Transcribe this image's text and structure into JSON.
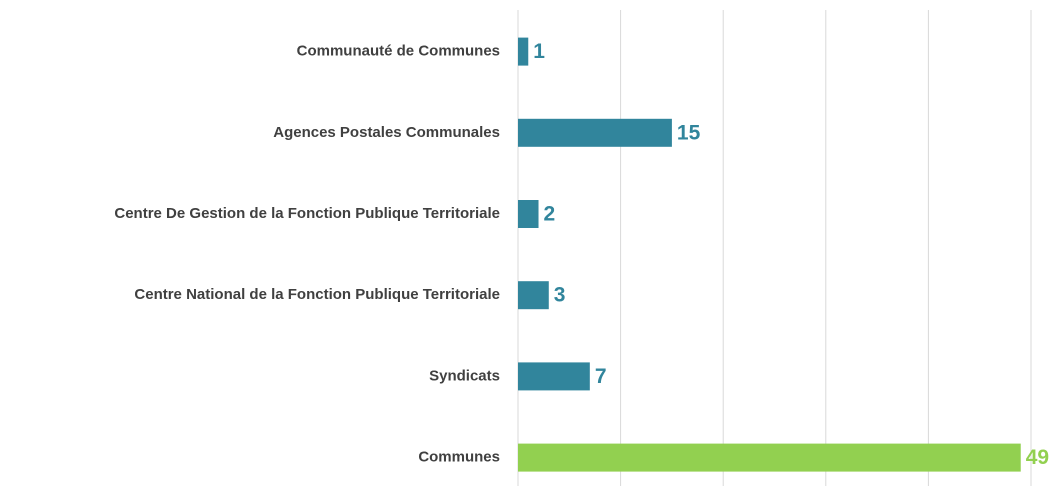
{
  "chart_data": {
    "type": "hbar",
    "categories": [
      "Communauté de Communes",
      "Agences Postales Communales",
      "Centre De Gestion de la Fonction Publique Territoriale",
      "Centre National de la Fonction Publique Territoriale",
      "Syndicats",
      "Communes"
    ],
    "values": [
      1,
      15,
      2,
      3,
      7,
      49
    ],
    "colors": [
      "#31859c",
      "#31859c",
      "#31859c",
      "#31859c",
      "#31859c",
      "#92d050"
    ],
    "xlim": [
      0,
      50
    ],
    "xticks": [
      0,
      10,
      20,
      30,
      40,
      50
    ],
    "grid": true
  }
}
